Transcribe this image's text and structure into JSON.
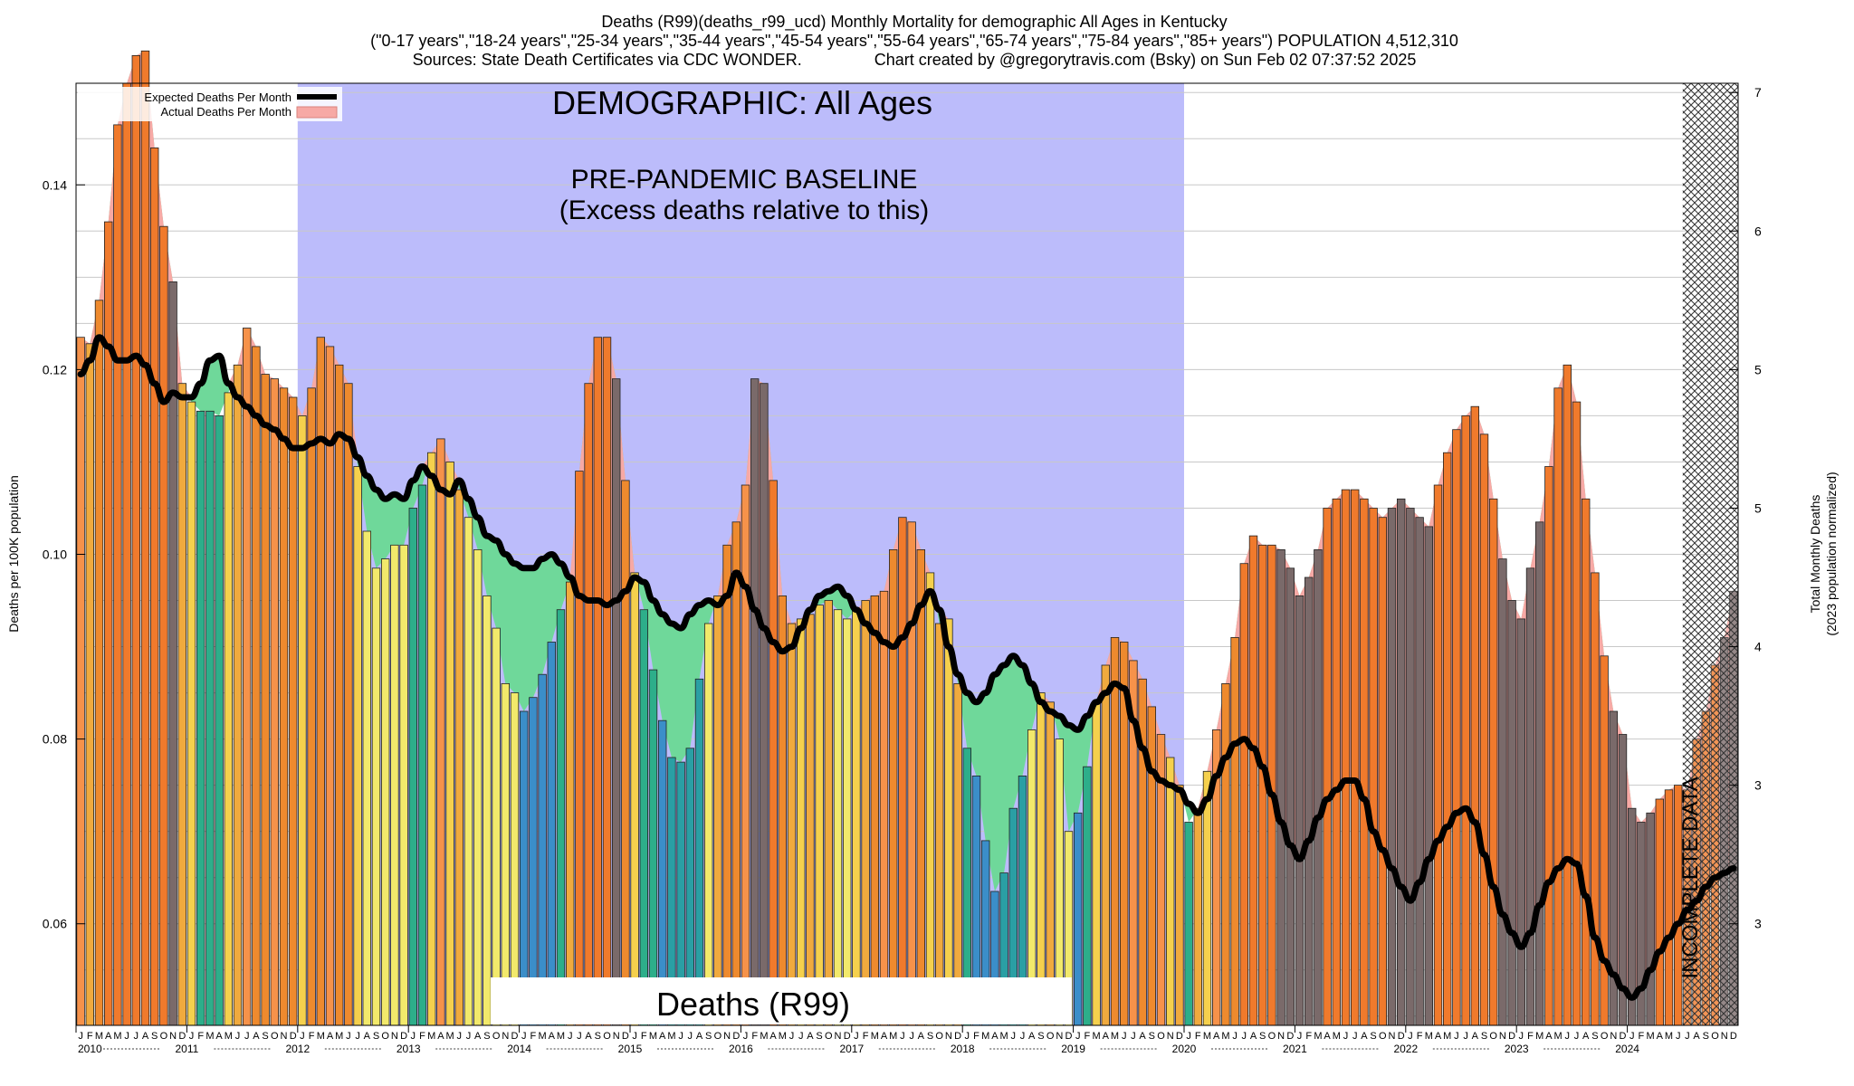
{
  "header": {
    "line1": "Deaths (R99)(deaths_r99_ucd) Monthly Mortality for demographic All Ages in Kentucky",
    "line2": "(\"0-17 years\",\"18-24 years\",\"25-34 years\",\"35-44 years\",\"45-54 years\",\"55-64 years\",\"65-74 years\",\"75-84 years\",\"85+ years\") POPULATION 4,512,310",
    "line3": "Sources: State Death Certificates via CDC WONDER.                Chart created by @gregorytravis.com (Bsky) on Sun Feb 02 07:37:52 2025"
  },
  "legend": {
    "expected": "Expected Deaths Per Month",
    "actual": "Actual Deaths Per Month"
  },
  "annotations": {
    "demographic": "DEMOGRAPHIC: All Ages",
    "baseline_line1": "PRE-PANDEMIC BASELINE",
    "baseline_line2": "(Excess deaths relative to this)",
    "cause_label": "Deaths (R99)",
    "incomplete": "INCOMPLETE DATA"
  },
  "colors": {
    "baseline_band": "#bcbcfb",
    "excess_fill": "#f7a9a5",
    "deficit_fill": "#6fd89a",
    "expected_line": "#000000",
    "bar_palette": [
      "#3b8ec9",
      "#2a9fa4",
      "#2dae8a",
      "#6eaf74",
      "#a8a83a",
      "#f2e96b",
      "#f5d04d",
      "#f0aa3e",
      "#ee8a2e",
      "#f07a2c",
      "#f6924a",
      "#7a6a6a",
      "#6d5a7a"
    ]
  },
  "chart_data": {
    "type": "bar",
    "title": "Deaths (R99)(deaths_r99_ucd) Monthly Mortality for demographic All Ages in Kentucky",
    "ylabel": "Deaths per 100K population",
    "ylabel_right_line1": "Total Monthly Deaths",
    "ylabel_right_line2": "(2023 population normalized)",
    "ylim": [
      0.049,
      0.151
    ],
    "yticks": [
      "0.06",
      "0.08",
      "0.10",
      "0.12",
      "0.14"
    ],
    "yticks_values": [
      0.06,
      0.08,
      0.1,
      0.12,
      0.14
    ],
    "right_ticks": [
      "3",
      "3",
      "4",
      "5",
      "5",
      "6",
      "7"
    ],
    "right_ticks_values": [
      0.06,
      0.075,
      0.09,
      0.105,
      0.12,
      0.135,
      0.15
    ],
    "month_letters": [
      "J",
      "F",
      "M",
      "A",
      "M",
      "J",
      "J",
      "A",
      "S",
      "O",
      "N",
      "D"
    ],
    "years": [
      "2010",
      "2011",
      "2012",
      "2013",
      "2014",
      "2015",
      "2016",
      "2017",
      "2018",
      "2019",
      "2020",
      "2021",
      "2022",
      "2023",
      "2024"
    ],
    "baseline_period": [
      "2012-01",
      "2019-12"
    ],
    "incomplete_from": "2024-07",
    "grid": true,
    "legend_position": "top-left",
    "series": [
      {
        "name": "Actual Deaths Per Month",
        "values": [
          0.1235,
          0.1228,
          0.1275,
          0.136,
          0.1465,
          0.151,
          0.154,
          0.1545,
          0.144,
          0.1355,
          0.1295,
          0.1185,
          0.1165,
          0.1155,
          0.1155,
          0.115,
          0.1175,
          0.1205,
          0.1245,
          0.1225,
          0.1195,
          0.119,
          0.118,
          0.117,
          0.115,
          0.118,
          0.1235,
          0.1225,
          0.1205,
          0.1185,
          0.1095,
          0.1025,
          0.0985,
          0.0995,
          0.101,
          0.101,
          0.105,
          0.1075,
          0.111,
          0.1125,
          0.11,
          0.107,
          0.104,
          0.1005,
          0.0955,
          0.092,
          0.086,
          0.085,
          0.083,
          0.0845,
          0.087,
          0.0905,
          0.094,
          0.097,
          0.109,
          0.1185,
          0.1235,
          0.1235,
          0.119,
          0.108,
          0.098,
          0.094,
          0.0875,
          0.082,
          0.078,
          0.0775,
          0.079,
          0.0865,
          0.0925,
          0.0955,
          0.101,
          0.1035,
          0.1075,
          0.119,
          0.1185,
          0.108,
          0.0955,
          0.0925,
          0.093,
          0.0935,
          0.0945,
          0.095,
          0.094,
          0.093,
          0.094,
          0.095,
          0.0955,
          0.096,
          0.1005,
          0.104,
          0.1035,
          0.1005,
          0.098,
          0.0925,
          0.093,
          0.086,
          0.079,
          0.076,
          0.069,
          0.0635,
          0.0655,
          0.0725,
          0.076,
          0.081,
          0.085,
          0.084,
          0.08,
          0.07,
          0.072,
          0.077,
          0.084,
          0.088,
          0.091,
          0.0905,
          0.0885,
          0.0865,
          0.0835,
          0.0805,
          0.078,
          0.075,
          0.071,
          0.0725,
          0.0765,
          0.081,
          0.086,
          0.091,
          0.099,
          0.102,
          0.101,
          0.101,
          0.1005,
          0.0985,
          0.0955,
          0.0975,
          0.1005,
          0.105,
          0.106,
          0.107,
          0.107,
          0.106,
          0.105,
          0.104,
          0.105,
          0.106,
          0.105,
          0.104,
          0.103,
          0.1075,
          0.111,
          0.1135,
          0.115,
          0.116,
          0.113,
          0.106,
          0.0995,
          0.095,
          0.093,
          0.0985,
          0.1035,
          0.1095,
          0.118,
          0.1205,
          0.1165,
          0.106,
          0.098,
          0.089,
          0.083,
          0.0805,
          0.0725,
          0.071,
          0.072,
          0.0735,
          0.0745,
          0.075,
          0.0745,
          0.08,
          0.083,
          0.088,
          0.091,
          0.096
        ]
      },
      {
        "name": "Expected Deaths Per Month",
        "values": [
          0.1195,
          0.121,
          0.1235,
          0.1225,
          0.121,
          0.121,
          0.1215,
          0.1205,
          0.1185,
          0.1165,
          0.1175,
          0.117,
          0.117,
          0.1185,
          0.121,
          0.1215,
          0.1185,
          0.117,
          0.116,
          0.115,
          0.114,
          0.1135,
          0.1125,
          0.1115,
          0.1115,
          0.112,
          0.1125,
          0.112,
          0.113,
          0.1125,
          0.1105,
          0.1085,
          0.107,
          0.106,
          0.1065,
          0.106,
          0.108,
          0.1095,
          0.1085,
          0.107,
          0.1065,
          0.108,
          0.106,
          0.104,
          0.102,
          0.1015,
          0.1,
          0.099,
          0.0985,
          0.0985,
          0.0995,
          0.1,
          0.099,
          0.0975,
          0.0955,
          0.095,
          0.095,
          0.0945,
          0.095,
          0.096,
          0.0975,
          0.097,
          0.095,
          0.0935,
          0.0925,
          0.092,
          0.0935,
          0.0945,
          0.095,
          0.0945,
          0.0955,
          0.098,
          0.0965,
          0.094,
          0.092,
          0.0905,
          0.0895,
          0.09,
          0.092,
          0.094,
          0.0955,
          0.096,
          0.0965,
          0.0955,
          0.094,
          0.0925,
          0.0915,
          0.0905,
          0.09,
          0.091,
          0.0925,
          0.0945,
          0.096,
          0.094,
          0.09,
          0.087,
          0.085,
          0.084,
          0.085,
          0.087,
          0.088,
          0.089,
          0.088,
          0.086,
          0.084,
          0.083,
          0.0825,
          0.0815,
          0.081,
          0.0825,
          0.084,
          0.085,
          0.086,
          0.0855,
          0.082,
          0.079,
          0.0765,
          0.0755,
          0.075,
          0.0745,
          0.073,
          0.072,
          0.0735,
          0.076,
          0.078,
          0.0795,
          0.08,
          0.079,
          0.077,
          0.074,
          0.071,
          0.0685,
          0.067,
          0.069,
          0.0715,
          0.0735,
          0.0745,
          0.0755,
          0.0755,
          0.0735,
          0.07,
          0.068,
          0.066,
          0.064,
          0.0625,
          0.0645,
          0.067,
          0.069,
          0.0705,
          0.072,
          0.0725,
          0.071,
          0.0675,
          0.064,
          0.061,
          0.059,
          0.0575,
          0.059,
          0.062,
          0.0645,
          0.066,
          0.067,
          0.0665,
          0.063,
          0.0585,
          0.056,
          0.0545,
          0.053,
          0.052,
          0.053,
          0.055,
          0.057,
          0.0585,
          0.06,
          0.0615,
          0.0625,
          0.064,
          0.065,
          0.0655,
          0.066
        ]
      }
    ]
  }
}
